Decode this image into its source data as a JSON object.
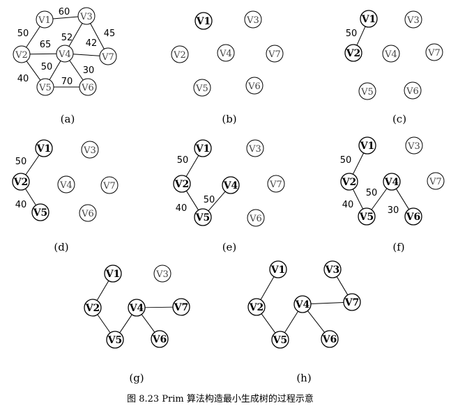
{
  "figure": {
    "caption": "图 8.23    Prim 算法构造最小生成树的过程示意"
  },
  "panels": [
    {
      "caption": "(a)",
      "nodes": [
        {
          "id": "V1",
          "label": "V1",
          "bold": false
        },
        {
          "id": "V3",
          "label": "V3",
          "bold": false
        },
        {
          "id": "V2",
          "label": "V2",
          "bold": false
        },
        {
          "id": "V4",
          "label": "V4",
          "bold": false
        },
        {
          "id": "V7",
          "label": "V7",
          "bold": false
        },
        {
          "id": "V5",
          "label": "V5",
          "bold": false
        },
        {
          "id": "V6",
          "label": "V6",
          "bold": false
        }
      ],
      "edges": [
        {
          "from": "V1",
          "to": "V3",
          "weight": "60"
        },
        {
          "from": "V1",
          "to": "V2",
          "weight": "50"
        },
        {
          "from": "V2",
          "to": "V4",
          "weight": "65"
        },
        {
          "from": "V3",
          "to": "V4",
          "weight": "52"
        },
        {
          "from": "V3",
          "to": "V7",
          "weight": "45"
        },
        {
          "from": "V4",
          "to": "V7",
          "weight": "42"
        },
        {
          "from": "V2",
          "to": "V5",
          "weight": "40"
        },
        {
          "from": "V4",
          "to": "V5",
          "weight": "50"
        },
        {
          "from": "V4",
          "to": "V6",
          "weight": "30"
        },
        {
          "from": "V5",
          "to": "V6",
          "weight": "70"
        }
      ]
    },
    {
      "caption": "(b)",
      "nodes": [
        {
          "id": "V1",
          "label": "V1",
          "bold": true
        },
        {
          "id": "V3",
          "label": "V3",
          "bold": false
        },
        {
          "id": "V2",
          "label": "V2",
          "bold": false
        },
        {
          "id": "V4",
          "label": "V4",
          "bold": false
        },
        {
          "id": "V7",
          "label": "V7",
          "bold": false
        },
        {
          "id": "V5",
          "label": "V5",
          "bold": false
        },
        {
          "id": "V6",
          "label": "V6",
          "bold": false
        }
      ],
      "edges": []
    },
    {
      "caption": "(c)",
      "nodes": [
        {
          "id": "V1",
          "label": "V1",
          "bold": true
        },
        {
          "id": "V3",
          "label": "V3",
          "bold": false
        },
        {
          "id": "V2",
          "label": "V2",
          "bold": true
        },
        {
          "id": "V4",
          "label": "V4",
          "bold": false
        },
        {
          "id": "V7",
          "label": "V7",
          "bold": false
        },
        {
          "id": "V5",
          "label": "V5",
          "bold": false
        },
        {
          "id": "V6",
          "label": "V6",
          "bold": false
        }
      ],
      "edges": [
        {
          "from": "V1",
          "to": "V2",
          "weight": "50"
        }
      ]
    },
    {
      "caption": "(d)",
      "nodes": [
        {
          "id": "V1",
          "label": "V1",
          "bold": true
        },
        {
          "id": "V3",
          "label": "V3",
          "bold": false
        },
        {
          "id": "V2",
          "label": "V2",
          "bold": true
        },
        {
          "id": "V4",
          "label": "V4",
          "bold": false
        },
        {
          "id": "V7",
          "label": "V7",
          "bold": false
        },
        {
          "id": "V5",
          "label": "V5",
          "bold": true
        },
        {
          "id": "V6",
          "label": "V6",
          "bold": false
        }
      ],
      "edges": [
        {
          "from": "V1",
          "to": "V2",
          "weight": "50"
        },
        {
          "from": "V2",
          "to": "V5",
          "weight": "40"
        }
      ]
    },
    {
      "caption": "(e)",
      "nodes": [
        {
          "id": "V1",
          "label": "V1",
          "bold": true
        },
        {
          "id": "V3",
          "label": "V3",
          "bold": false
        },
        {
          "id": "V2",
          "label": "V2",
          "bold": true
        },
        {
          "id": "V4",
          "label": "V4",
          "bold": true
        },
        {
          "id": "V7",
          "label": "V7",
          "bold": false
        },
        {
          "id": "V5",
          "label": "V5",
          "bold": true
        },
        {
          "id": "V6",
          "label": "V6",
          "bold": false
        }
      ],
      "edges": [
        {
          "from": "V1",
          "to": "V2",
          "weight": "50"
        },
        {
          "from": "V2",
          "to": "V5",
          "weight": "40"
        },
        {
          "from": "V5",
          "to": "V4",
          "weight": "50"
        }
      ]
    },
    {
      "caption": "(f)",
      "nodes": [
        {
          "id": "V1",
          "label": "V1",
          "bold": true
        },
        {
          "id": "V3",
          "label": "V3",
          "bold": false
        },
        {
          "id": "V2",
          "label": "V2",
          "bold": true
        },
        {
          "id": "V4",
          "label": "V4",
          "bold": true
        },
        {
          "id": "V7",
          "label": "V7",
          "bold": false
        },
        {
          "id": "V5",
          "label": "V5",
          "bold": true
        },
        {
          "id": "V6",
          "label": "V6",
          "bold": true
        }
      ],
      "edges": [
        {
          "from": "V1",
          "to": "V2",
          "weight": "50"
        },
        {
          "from": "V2",
          "to": "V5",
          "weight": "40"
        },
        {
          "from": "V5",
          "to": "V4",
          "weight": "50"
        },
        {
          "from": "V4",
          "to": "V6",
          "weight": "30"
        }
      ]
    },
    {
      "caption": "(g)",
      "nodes": [
        {
          "id": "V1",
          "label": "V1",
          "bold": true
        },
        {
          "id": "V3",
          "label": "V3",
          "bold": false
        },
        {
          "id": "V2",
          "label": "V2",
          "bold": true
        },
        {
          "id": "V4",
          "label": "V4",
          "bold": true
        },
        {
          "id": "V7",
          "label": "V7",
          "bold": true
        },
        {
          "id": "V5",
          "label": "V5",
          "bold": true
        },
        {
          "id": "V6",
          "label": "V6",
          "bold": true
        }
      ],
      "edges": [
        {
          "from": "V1",
          "to": "V2",
          "weight": ""
        },
        {
          "from": "V2",
          "to": "V5",
          "weight": ""
        },
        {
          "from": "V5",
          "to": "V4",
          "weight": ""
        },
        {
          "from": "V4",
          "to": "V6",
          "weight": ""
        },
        {
          "from": "V4",
          "to": "V7",
          "weight": ""
        }
      ]
    },
    {
      "caption": "(h)",
      "nodes": [
        {
          "id": "V1",
          "label": "V1",
          "bold": true
        },
        {
          "id": "V3",
          "label": "V3",
          "bold": true
        },
        {
          "id": "V2",
          "label": "V2",
          "bold": true
        },
        {
          "id": "V4",
          "label": "V4",
          "bold": true
        },
        {
          "id": "V7",
          "label": "V7",
          "bold": true
        },
        {
          "id": "V5",
          "label": "V5",
          "bold": true
        },
        {
          "id": "V6",
          "label": "V6",
          "bold": true
        }
      ],
      "edges": [
        {
          "from": "V1",
          "to": "V2",
          "weight": ""
        },
        {
          "from": "V2",
          "to": "V5",
          "weight": ""
        },
        {
          "from": "V5",
          "to": "V4",
          "weight": ""
        },
        {
          "from": "V4",
          "to": "V6",
          "weight": ""
        },
        {
          "from": "V4",
          "to": "V7",
          "weight": ""
        },
        {
          "from": "V3",
          "to": "V7",
          "weight": ""
        }
      ]
    }
  ]
}
